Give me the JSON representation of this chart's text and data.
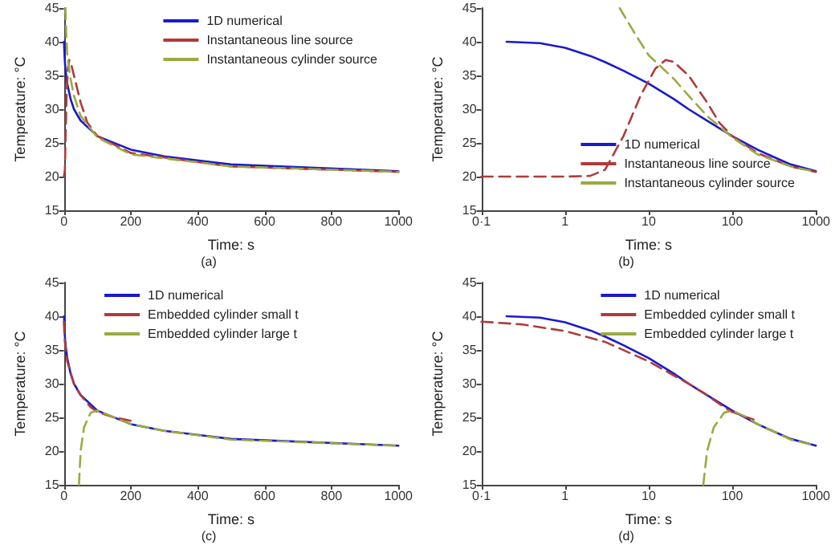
{
  "chart_data": [
    {
      "type": "line",
      "xlabel": "Time: s",
      "ylabel": "Temperature: °C",
      "annotations": [
        "(a)"
      ],
      "xlim": [
        0,
        1000
      ],
      "xticks": [
        0,
        200,
        400,
        600,
        800,
        1000
      ],
      "ylim": [
        15,
        45
      ],
      "yticks": [
        15,
        20,
        25,
        30,
        35,
        40,
        45
      ],
      "legend": "top right",
      "marker": "none",
      "series": [
        {
          "name": "1D numerical",
          "color": "#1a1acc",
          "line_style": "solid",
          "x": [
            0.2,
            0.5,
            1,
            2,
            3,
            5,
            10,
            20,
            30,
            50,
            100,
            200,
            300,
            500,
            1000
          ],
          "values": [
            40,
            39.8,
            39.1,
            37.9,
            37,
            35.7,
            33.8,
            31.5,
            30,
            28.3,
            26,
            24,
            23,
            21.8,
            20.8
          ]
        },
        {
          "name": "Instantaneous line source",
          "color": "#b03a3a",
          "line_style": "dashed",
          "x": [
            0.1,
            1,
            2,
            3,
            5,
            8,
            12,
            16,
            20,
            30,
            50,
            70,
            100,
            200,
            500,
            1000
          ],
          "values": [
            20,
            20,
            20.1,
            21,
            26,
            32,
            36,
            37.3,
            37,
            35,
            31,
            28,
            26,
            23.5,
            21.5,
            20.7
          ]
        },
        {
          "name": "Instantaneous cylinder source",
          "color": "#9aaa40",
          "line_style": "dashed",
          "x": [
            4.5,
            7,
            10,
            20,
            30,
            50,
            100,
            200,
            500,
            1000
          ],
          "values": [
            45,
            41,
            38,
            34.5,
            32,
            29,
            25.8,
            23.3,
            21.5,
            20.7
          ]
        }
      ]
    },
    {
      "type": "line",
      "xlabel": "Time: s",
      "ylabel": "Temperature: °C",
      "annotations": [
        "(b)"
      ],
      "log": "x",
      "xlim": [
        0.1,
        1000
      ],
      "xticks": [
        {
          "value": 0.1,
          "label": "0·1"
        },
        1,
        10,
        100,
        1000
      ],
      "ylim": [
        15,
        45
      ],
      "yticks": [
        15,
        20,
        25,
        30,
        35,
        40,
        45
      ],
      "legend": "bottom right",
      "marker": "none",
      "series": [
        {
          "name": "1D numerical",
          "color": "#1a1acc",
          "line_style": "solid",
          "x": [
            0.2,
            0.5,
            1,
            2,
            3,
            5,
            10,
            20,
            30,
            50,
            100,
            200,
            300,
            500,
            1000
          ],
          "values": [
            40,
            39.8,
            39.1,
            37.9,
            37,
            35.7,
            33.8,
            31.5,
            30,
            28.3,
            26,
            24,
            23,
            21.8,
            20.8
          ]
        },
        {
          "name": "Instantaneous line source",
          "color": "#b03a3a",
          "line_style": "dashed",
          "x": [
            0.1,
            1,
            2,
            3,
            5,
            8,
            12,
            16,
            20,
            30,
            50,
            70,
            100,
            200,
            500,
            1000
          ],
          "values": [
            20,
            20,
            20.1,
            21,
            26,
            32,
            36,
            37.3,
            37,
            35,
            31,
            28,
            26,
            23.5,
            21.5,
            20.7
          ]
        },
        {
          "name": "Instantaneous cylinder source",
          "color": "#9aaa40",
          "line_style": "dashed",
          "x": [
            4.5,
            7,
            10,
            20,
            30,
            50,
            100,
            200,
            500,
            1000
          ],
          "values": [
            45,
            41,
            38,
            34.5,
            32,
            29,
            25.8,
            23.3,
            21.5,
            20.7
          ]
        }
      ]
    },
    {
      "type": "line",
      "xlabel": "Time: s",
      "ylabel": "Temperature: °C",
      "annotations": [
        "(c)"
      ],
      "xlim": [
        0,
        1000
      ],
      "xticks": [
        0,
        200,
        400,
        600,
        800,
        1000
      ],
      "ylim": [
        15,
        45
      ],
      "yticks": [
        15,
        20,
        25,
        30,
        35,
        40,
        45
      ],
      "legend": "top",
      "marker": "none",
      "series": [
        {
          "name": "1D numerical",
          "color": "#1a1acc",
          "line_style": "solid",
          "x": [
            0.2,
            0.5,
            1,
            2,
            3,
            5,
            10,
            20,
            30,
            50,
            100,
            200,
            300,
            500,
            1000
          ],
          "values": [
            40,
            39.8,
            39.1,
            37.9,
            37,
            35.7,
            33.8,
            31.5,
            30,
            28.3,
            26,
            24,
            23,
            21.8,
            20.8
          ]
        },
        {
          "name": "Embedded cylinder small t",
          "color": "#b03a3a",
          "line_style": "dashed",
          "x": [
            0.1,
            0.3,
            1,
            3,
            10,
            30,
            50,
            80,
            100,
            150,
            200
          ],
          "values": [
            39.2,
            38.8,
            37.8,
            36.2,
            33.3,
            30,
            28.3,
            26.5,
            25.8,
            25,
            24.5
          ]
        },
        {
          "name": "Embedded cylinder large t",
          "color": "#9aaa40",
          "line_style": "dashed",
          "x": [
            45,
            50,
            60,
            80,
            100,
            150,
            200,
            300,
            500,
            1000
          ],
          "values": [
            15,
            20,
            23.5,
            25.7,
            26,
            25,
            24,
            23,
            21.7,
            20.8
          ]
        }
      ]
    },
    {
      "type": "line",
      "xlabel": "Time: s",
      "ylabel": "Temperature: °C",
      "annotations": [
        "(d)"
      ],
      "log": "x",
      "xlim": [
        0.1,
        1000
      ],
      "xticks": [
        {
          "value": 0.1,
          "label": "0·1"
        },
        1,
        10,
        100,
        1000
      ],
      "ylim": [
        15,
        45
      ],
      "yticks": [
        15,
        20,
        25,
        30,
        35,
        40,
        45
      ],
      "legend": "top right",
      "marker": "none",
      "series": [
        {
          "name": "1D numerical",
          "color": "#1a1acc",
          "line_style": "solid",
          "x": [
            0.2,
            0.5,
            1,
            2,
            3,
            5,
            10,
            20,
            30,
            50,
            100,
            200,
            300,
            500,
            1000
          ],
          "values": [
            40,
            39.8,
            39.1,
            37.9,
            37,
            35.7,
            33.8,
            31.5,
            30,
            28.3,
            26,
            24,
            23,
            21.8,
            20.8
          ]
        },
        {
          "name": "Embedded cylinder small t",
          "color": "#b03a3a",
          "line_style": "dashed",
          "x": [
            0.1,
            0.3,
            1,
            3,
            10,
            30,
            50,
            80,
            100,
            150,
            200
          ],
          "values": [
            39.2,
            38.8,
            37.8,
            36.2,
            33.3,
            30,
            28.3,
            26.5,
            25.8,
            25,
            24.5
          ]
        },
        {
          "name": "Embedded cylinder large t",
          "color": "#9aaa40",
          "line_style": "dashed",
          "x": [
            45,
            50,
            60,
            80,
            100,
            150,
            200,
            300,
            500,
            1000
          ],
          "values": [
            15,
            20,
            23.5,
            25.7,
            26,
            25,
            24,
            23,
            21.7,
            20.8
          ]
        }
      ]
    }
  ]
}
